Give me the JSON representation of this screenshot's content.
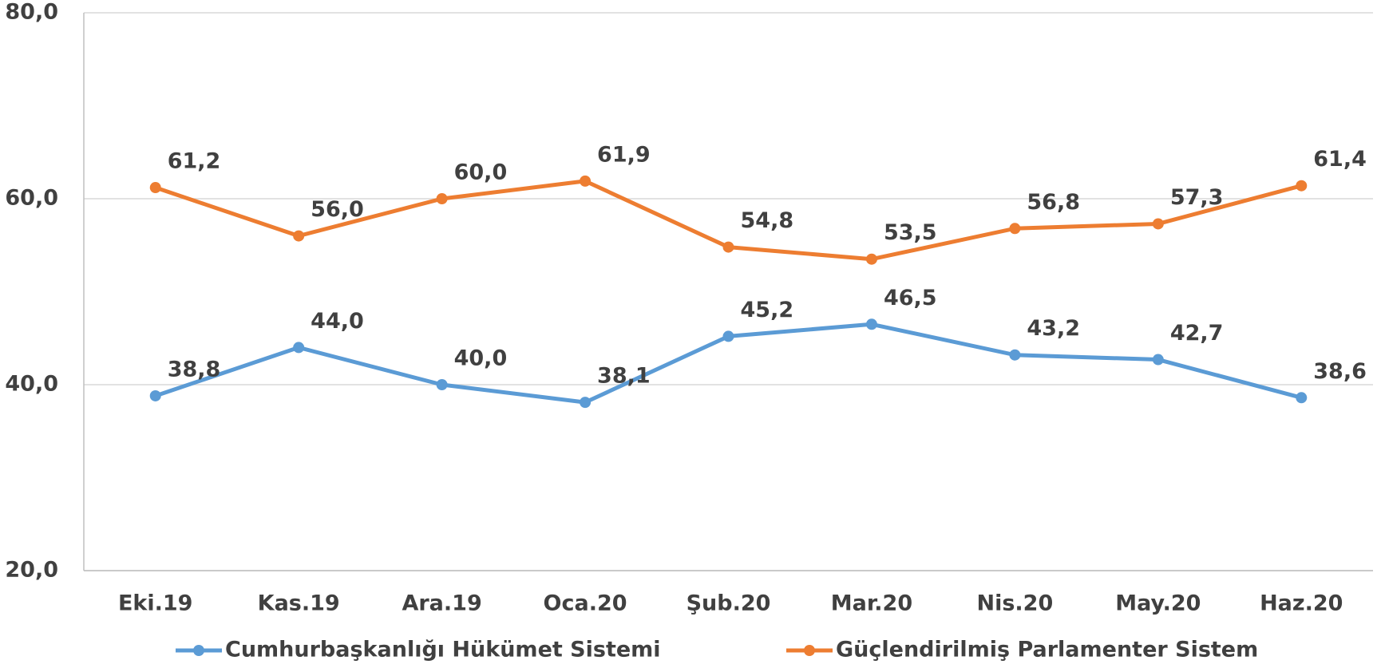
{
  "chart_data": {
    "type": "line",
    "categories": [
      "Eki.19",
      "Kas.19",
      "Ara.19",
      "Oca.20",
      "Şub.20",
      "Mar.20",
      "Nis.20",
      "May.20",
      "Haz.20"
    ],
    "series": [
      {
        "name": "Cumhurbaşkanlığı Hükümet Sistemi",
        "color": "#5b9bd5",
        "values": [
          38.8,
          44.0,
          40.0,
          38.1,
          45.2,
          46.5,
          43.2,
          42.7,
          38.6
        ],
        "value_labels": [
          "38,8",
          "44,0",
          "40,0",
          "38,1",
          "45,2",
          "46,5",
          "43,2",
          "42,7",
          "38,6"
        ]
      },
      {
        "name": "Güçlendirilmiş Parlamenter Sistem",
        "color": "#ed7d31",
        "values": [
          61.2,
          56.0,
          60.0,
          61.9,
          54.8,
          53.5,
          56.8,
          57.3,
          61.4
        ],
        "value_labels": [
          "61,2",
          "56,0",
          "60,0",
          "61,9",
          "54,8",
          "53,5",
          "56,8",
          "57,3",
          "61,4"
        ]
      }
    ],
    "ylim": [
      20,
      80
    ],
    "yticks": [
      {
        "value": 20,
        "label": "20,0"
      },
      {
        "value": 40,
        "label": "40,0"
      },
      {
        "value": 60,
        "label": "60,0"
      },
      {
        "value": 80,
        "label": "80,0"
      }
    ],
    "grid": true,
    "legend": "bottom"
  }
}
